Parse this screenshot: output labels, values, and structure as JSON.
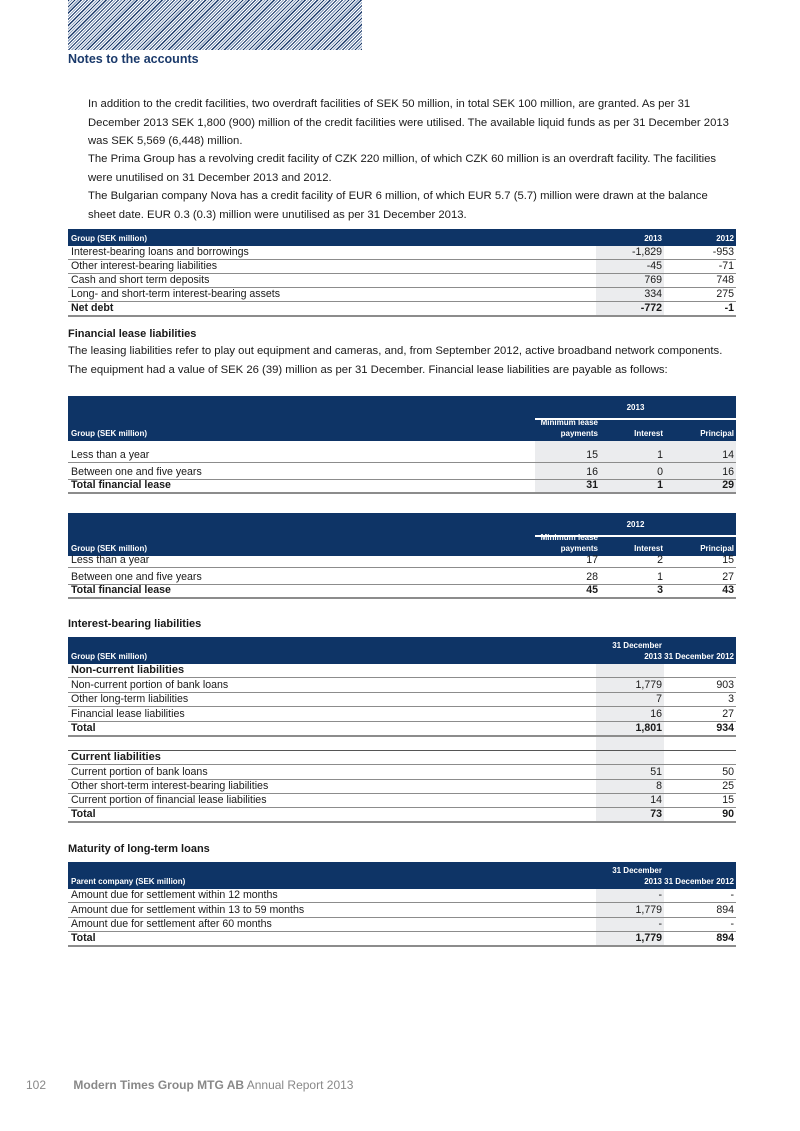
{
  "header": {
    "section_title": "Notes to the accounts"
  },
  "intro": [
    "In addition to the credit facilities, two overdraft facilities of SEK 50 million, in total SEK 100 million, are granted. As per 31 December 2013 SEK 1,800 (900) million of the credit facilities were utilised. The available liquid funds as per 31 December 2013 was SEK 5,569 (6,448) million.",
    "The Prima Group has a revolving credit facility of CZK 220 million, of which CZK 60 million is an overdraft facility. The facilities were unutilised on 31 December 2013 and 2012.",
    "The Bulgarian company Nova has a credit facility of EUR 6 million, of which EUR 5.7 (5.7) million were drawn at the balance sheet date. EUR 0.3 (0.3) million were unutilised as per 31 December 2013."
  ],
  "lease_section": {
    "heading": "Financial lease liabilities",
    "text": "The leasing liabilities refer to play out equipment and cameras, and, from September 2012, active broadband network components. The equipment had a value of SEK 26 (39) million as per 31 December. Financial lease liabilities are payable as follows:"
  },
  "interest_heading": "Interest-bearing liabilities",
  "maturity_heading": "Maturity of long-term loans",
  "colors": {
    "navy": "#0e3466",
    "shade": "#ebecee"
  },
  "tables": [
    {
      "label": "Group (SEK million)",
      "cols": [
        "2013",
        "2012"
      ],
      "rows": [
        {
          "label": "Interest-bearing loans and borrowings",
          "values": [
            "-1,829",
            "-953"
          ]
        },
        {
          "label": "Other interest-bearing liabilities",
          "values": [
            "-45",
            "-71"
          ]
        },
        {
          "label": "Cash and short term deposits",
          "values": [
            "769",
            "748"
          ]
        },
        {
          "label": "Long- and short-term interest-bearing assets",
          "values": [
            "334",
            "275"
          ]
        },
        {
          "label": "Net debt",
          "values": [
            "-772",
            "-1"
          ],
          "type": "total"
        }
      ]
    },
    {
      "label": "Group (SEK million)",
      "group": "2013",
      "cols": [
        "Minimum lease payments",
        "Interest",
        "Principal"
      ],
      "rows": [
        {
          "label": "Less than a year",
          "values": [
            "15",
            "1",
            "14"
          ]
        },
        {
          "label": "Between one and five years",
          "values": [
            "16",
            "0",
            "16"
          ]
        },
        {
          "label": "Total financial lease",
          "values": [
            "31",
            "1",
            "29"
          ],
          "type": "total"
        }
      ]
    },
    {
      "label": "Group (SEK million)",
      "group": "2012",
      "cols": [
        "Minimum lease payments",
        "Interest",
        "Principal"
      ],
      "rows": [
        {
          "label": "Less than a year",
          "values": [
            "17",
            "2",
            "15"
          ]
        },
        {
          "label": "Between one and five years",
          "values": [
            "28",
            "1",
            "27"
          ]
        },
        {
          "label": "Total financial lease",
          "values": [
            "45",
            "3",
            "43"
          ],
          "type": "total"
        }
      ]
    },
    {
      "label": "Group (SEK million)",
      "cols": [
        "31 December 2013",
        "31 December 2012"
      ],
      "rows": [
        {
          "label": "Non-current liabilities",
          "values": [],
          "type": "section"
        },
        {
          "label": "Non-current portion of bank loans",
          "values": [
            "1,779",
            "903"
          ]
        },
        {
          "label": "Other long-term liabilities",
          "values": [
            "7",
            "3"
          ]
        },
        {
          "label": "Financial lease liabilities",
          "values": [
            "16",
            "27"
          ]
        },
        {
          "label": "Total",
          "values": [
            "1,801",
            "934"
          ],
          "type": "total"
        },
        {
          "label": "",
          "values": [],
          "type": "spacer"
        },
        {
          "label": "Current liabilities",
          "values": [],
          "type": "section"
        },
        {
          "label": "Current portion of bank loans",
          "values": [
            "51",
            "50"
          ]
        },
        {
          "label": "Other short-term interest-bearing liabilities",
          "values": [
            "8",
            "25"
          ]
        },
        {
          "label": "Current portion of financial lease liabilities",
          "values": [
            "14",
            "15"
          ]
        },
        {
          "label": "Total",
          "values": [
            "73",
            "90"
          ],
          "type": "total"
        }
      ]
    },
    {
      "label": "Parent company (SEK million)",
      "cols": [
        "31 December 2013",
        "31 December 2012"
      ],
      "rows": [
        {
          "label": "Amount due for settlement within 12 months",
          "values": [
            "-",
            "-"
          ]
        },
        {
          "label": "Amount due for settlement within 13 to 59 months",
          "values": [
            "1,779",
            "894"
          ]
        },
        {
          "label": "Amount due for settlement after 60 months",
          "values": [
            "-",
            "-"
          ]
        },
        {
          "label": "Total",
          "values": [
            "1,779",
            "894"
          ],
          "type": "total"
        }
      ]
    }
  ],
  "footer": {
    "page": "102",
    "company": "Modern Times Group MTG AB",
    "report": "Annual Report 2013"
  }
}
